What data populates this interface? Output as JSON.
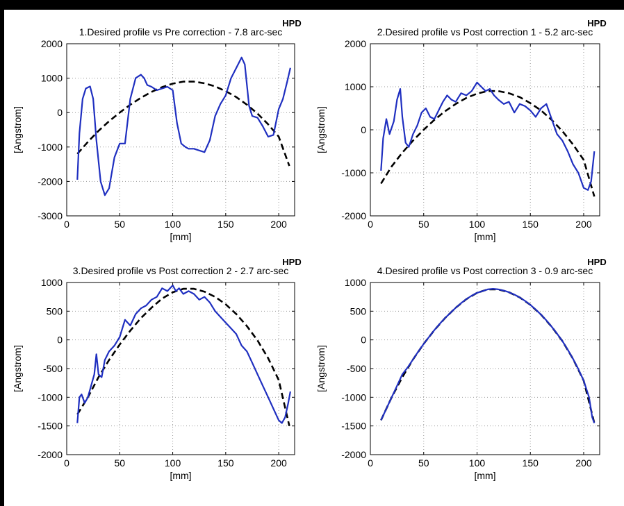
{
  "hpd_label": "HPD",
  "colors": {
    "measured": "#1f2fc0",
    "desired": "#000000",
    "grid": "#9a9a9a"
  },
  "chart_data": [
    {
      "type": "line",
      "title": "1.Desired profile vs Pre correction - 7.8 arc-sec",
      "xlabel": "[mm]",
      "ylabel": "[Angstrom]",
      "xlim": [
        0,
        215
      ],
      "ylim": [
        -3000,
        2000
      ],
      "xticks": [
        0,
        50,
        100,
        150,
        200
      ],
      "yticks": [
        -3000,
        -2000,
        -1000,
        0,
        1000,
        2000
      ],
      "grid": true,
      "series": [
        {
          "style": "dashed",
          "x": [
            10,
            20,
            30,
            40,
            50,
            60,
            70,
            80,
            90,
            100,
            110,
            120,
            130,
            140,
            150,
            160,
            170,
            180,
            190,
            200,
            210
          ],
          "y": [
            -1200,
            -850,
            -530,
            -250,
            0,
            230,
            430,
            600,
            740,
            840,
            900,
            900,
            850,
            760,
            620,
            450,
            230,
            -30,
            -340,
            -700,
            -1550
          ]
        },
        {
          "style": "solid",
          "x": [
            10,
            12,
            15,
            18,
            22,
            25,
            28,
            32,
            36,
            40,
            45,
            50,
            55,
            60,
            65,
            70,
            73,
            76,
            80,
            85,
            90,
            95,
            100,
            104,
            108,
            112,
            115,
            120,
            125,
            130,
            135,
            140,
            145,
            150,
            155,
            160,
            165,
            168,
            172,
            175,
            180,
            185,
            190,
            195,
            200,
            204,
            208,
            211
          ],
          "y": [
            -1950,
            -600,
            400,
            700,
            760,
            400,
            -800,
            -2000,
            -2400,
            -2200,
            -1300,
            -900,
            -900,
            400,
            1000,
            1100,
            1000,
            800,
            750,
            650,
            700,
            750,
            650,
            -300,
            -900,
            -1000,
            -1050,
            -1050,
            -1100,
            -1150,
            -800,
            -100,
            250,
            500,
            1000,
            1300,
            1600,
            1400,
            200,
            -100,
            -150,
            -400,
            -700,
            -650,
            100,
            400,
            900,
            1300
          ]
        }
      ]
    },
    {
      "type": "line",
      "title": "2.Desired profile vs Post correction 1 - 5.2 arc-sec",
      "xlabel": "[mm]",
      "ylabel": "[Angstrom]",
      "xlim": [
        0,
        215
      ],
      "ylim": [
        -2000,
        2000
      ],
      "xticks": [
        0,
        50,
        100,
        150,
        200
      ],
      "yticks": [
        -2000,
        -1000,
        0,
        1000,
        2000
      ],
      "grid": true,
      "series": [
        {
          "style": "dashed",
          "x": [
            10,
            20,
            30,
            40,
            50,
            60,
            70,
            80,
            90,
            100,
            110,
            120,
            130,
            140,
            150,
            160,
            170,
            180,
            190,
            200,
            210
          ],
          "y": [
            -1250,
            -850,
            -530,
            -250,
            0,
            230,
            430,
            600,
            740,
            840,
            900,
            900,
            850,
            760,
            620,
            450,
            230,
            -30,
            -340,
            -700,
            -1550
          ]
        },
        {
          "style": "solid",
          "x": [
            10,
            12,
            15,
            18,
            22,
            25,
            28,
            30,
            33,
            36,
            40,
            44,
            48,
            52,
            56,
            60,
            64,
            68,
            72,
            76,
            80,
            85,
            90,
            95,
            100,
            104,
            108,
            112,
            116,
            120,
            125,
            130,
            135,
            140,
            145,
            150,
            155,
            160,
            165,
            170,
            175,
            180,
            185,
            190,
            195,
            200,
            204,
            207,
            210
          ],
          "y": [
            -950,
            -200,
            250,
            -100,
            200,
            700,
            950,
            300,
            -300,
            -400,
            -100,
            100,
            400,
            500,
            300,
            250,
            450,
            650,
            800,
            700,
            650,
            850,
            800,
            900,
            1100,
            1000,
            900,
            950,
            800,
            700,
            600,
            650,
            400,
            600,
            550,
            450,
            300,
            500,
            600,
            250,
            -100,
            -250,
            -500,
            -800,
            -1000,
            -1350,
            -1400,
            -1200,
            -500
          ]
        }
      ]
    },
    {
      "type": "line",
      "title": "3.Desired profile vs Post correction 2 - 2.7 arc-sec",
      "xlabel": "[mm]",
      "ylabel": "[Angstrom]",
      "xlim": [
        0,
        215
      ],
      "ylim": [
        -2000,
        1000
      ],
      "xticks": [
        0,
        50,
        100,
        150,
        200
      ],
      "yticks": [
        -2000,
        -1500,
        -1000,
        -500,
        0,
        500,
        1000
      ],
      "grid": true,
      "series": [
        {
          "style": "dashed",
          "x": [
            10,
            20,
            30,
            40,
            50,
            60,
            70,
            80,
            90,
            100,
            110,
            120,
            130,
            140,
            150,
            160,
            170,
            180,
            190,
            200,
            210
          ],
          "y": [
            -1300,
            -1000,
            -650,
            -350,
            -80,
            160,
            380,
            560,
            720,
            830,
            890,
            890,
            840,
            750,
            620,
            450,
            240,
            -10,
            -320,
            -700,
            -1500
          ]
        },
        {
          "style": "solid",
          "x": [
            10,
            12,
            14,
            17,
            20,
            23,
            26,
            28,
            30,
            33,
            36,
            40,
            45,
            50,
            55,
            60,
            65,
            70,
            75,
            80,
            85,
            90,
            95,
            100,
            103,
            106,
            110,
            115,
            120,
            125,
            130,
            135,
            140,
            145,
            150,
            155,
            160,
            165,
            170,
            175,
            180,
            185,
            190,
            195,
            200,
            203,
            206,
            209,
            211
          ],
          "y": [
            -1450,
            -1000,
            -950,
            -1100,
            -1000,
            -800,
            -600,
            -250,
            -600,
            -650,
            -350,
            -200,
            -100,
            50,
            350,
            250,
            450,
            550,
            600,
            700,
            750,
            900,
            850,
            950,
            850,
            900,
            800,
            850,
            800,
            700,
            750,
            650,
            500,
            400,
            300,
            200,
            100,
            -100,
            -200,
            -400,
            -600,
            -800,
            -1000,
            -1200,
            -1400,
            -1450,
            -1350,
            -1100,
            -900
          ]
        }
      ]
    },
    {
      "type": "line",
      "title": "4.Desired profile vs Post correction 3 - 0.9 arc-sec",
      "xlabel": "[mm]",
      "ylabel": "[Angstrom]",
      "xlim": [
        0,
        215
      ],
      "ylim": [
        -2000,
        1000
      ],
      "xticks": [
        0,
        50,
        100,
        150,
        200
      ],
      "yticks": [
        -2000,
        -1500,
        -1000,
        -500,
        0,
        500,
        1000
      ],
      "grid": true,
      "series": [
        {
          "style": "dashed",
          "x": [
            10,
            20,
            30,
            40,
            50,
            60,
            70,
            80,
            90,
            100,
            110,
            120,
            130,
            140,
            150,
            160,
            170,
            180,
            190,
            200,
            210
          ],
          "y": [
            -1400,
            -1000,
            -650,
            -340,
            -70,
            170,
            380,
            560,
            710,
            820,
            880,
            880,
            830,
            740,
            610,
            440,
            230,
            -20,
            -330,
            -710,
            -1450
          ]
        },
        {
          "style": "solid",
          "x": [
            10,
            15,
            20,
            25,
            30,
            35,
            40,
            45,
            50,
            55,
            60,
            65,
            70,
            75,
            80,
            85,
            90,
            95,
            100,
            105,
            110,
            115,
            120,
            125,
            130,
            135,
            140,
            145,
            150,
            155,
            160,
            165,
            170,
            175,
            180,
            185,
            190,
            195,
            200,
            205,
            208,
            210
          ],
          "y": [
            -1400,
            -1200,
            -1000,
            -800,
            -600,
            -480,
            -340,
            -200,
            -70,
            50,
            170,
            280,
            380,
            470,
            560,
            640,
            710,
            770,
            820,
            850,
            880,
            890,
            880,
            860,
            830,
            790,
            740,
            680,
            610,
            530,
            440,
            340,
            230,
            110,
            -20,
            -170,
            -330,
            -510,
            -710,
            -1000,
            -1350,
            -1450
          ]
        }
      ]
    }
  ]
}
